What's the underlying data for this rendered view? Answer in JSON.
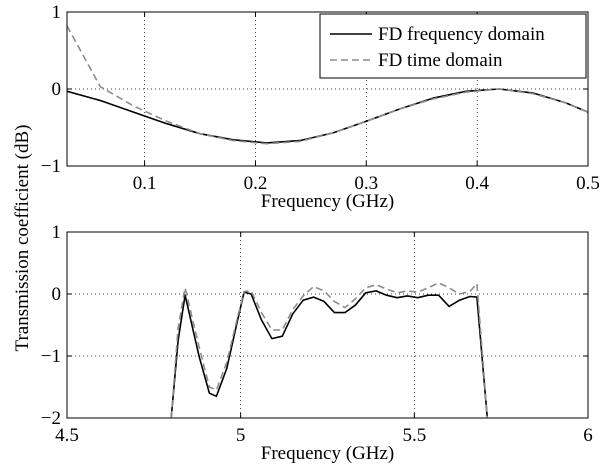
{
  "figure": {
    "ylabel": "Transmission coefficient (dB)"
  },
  "chart_data": [
    {
      "type": "line",
      "xlabel": "Frequency (GHz)",
      "ylabel": "",
      "xlim": [
        0.03,
        0.5
      ],
      "ylim": [
        -1,
        1
      ],
      "xticks": [
        0.1,
        0.2,
        0.3,
        0.4,
        0.5
      ],
      "xtick_labels": [
        "0.1",
        "0.2",
        "0.3",
        "0.4",
        "0.5"
      ],
      "yticks": [
        -1,
        0,
        1
      ],
      "ytick_labels": [
        "−1",
        "0",
        "1"
      ],
      "grid": true,
      "legend": "top-right",
      "series": [
        {
          "name": "FD frequency domain",
          "color": "#000000",
          "dash": "solid",
          "x": [
            0.03,
            0.06,
            0.09,
            0.12,
            0.15,
            0.18,
            0.21,
            0.24,
            0.27,
            0.3,
            0.33,
            0.36,
            0.39,
            0.42,
            0.45,
            0.48,
            0.5
          ],
          "y": [
            -0.03,
            -0.15,
            -0.3,
            -0.45,
            -0.58,
            -0.66,
            -0.7,
            -0.67,
            -0.57,
            -0.42,
            -0.26,
            -0.12,
            -0.03,
            0.0,
            -0.05,
            -0.18,
            -0.3
          ]
        },
        {
          "name": "FD time domain",
          "color": "#8c8c8c",
          "dash": "dashed",
          "x": [
            0.03,
            0.06,
            0.09,
            0.12,
            0.15,
            0.18,
            0.21,
            0.24,
            0.27,
            0.3,
            0.33,
            0.36,
            0.39,
            0.42,
            0.45,
            0.48,
            0.5
          ],
          "y": [
            0.82,
            0.03,
            -0.22,
            -0.42,
            -0.58,
            -0.67,
            -0.71,
            -0.68,
            -0.57,
            -0.42,
            -0.26,
            -0.13,
            -0.04,
            0.0,
            -0.06,
            -0.18,
            -0.3
          ]
        }
      ]
    },
    {
      "type": "line",
      "xlabel": "Frequency (GHz)",
      "ylabel": "",
      "xlim": [
        4.5,
        6
      ],
      "ylim": [
        -2,
        1
      ],
      "xticks": [
        4.5,
        5,
        5.5,
        6
      ],
      "xtick_labels": [
        "4.5",
        "5",
        "5.5",
        "6"
      ],
      "yticks": [
        -2,
        -1,
        0,
        1
      ],
      "ytick_labels": [
        "−2",
        "−1",
        "0",
        "1"
      ],
      "grid": true,
      "legend": "none",
      "series": [
        {
          "name": "FD frequency domain",
          "color": "#000000",
          "dash": "solid",
          "x": [
            4.8,
            4.82,
            4.84,
            4.88,
            4.91,
            4.93,
            4.96,
            4.99,
            5.01,
            5.03,
            5.06,
            5.09,
            5.12,
            5.15,
            5.18,
            5.21,
            5.24,
            5.27,
            5.3,
            5.33,
            5.36,
            5.39,
            5.42,
            5.45,
            5.48,
            5.51,
            5.54,
            5.57,
            5.6,
            5.63,
            5.66,
            5.68,
            5.71
          ],
          "y": [
            -2.0,
            -0.75,
            -0.02,
            -1.0,
            -1.6,
            -1.65,
            -1.2,
            -0.45,
            0.03,
            0.0,
            -0.42,
            -0.72,
            -0.68,
            -0.32,
            -0.1,
            -0.05,
            -0.12,
            -0.3,
            -0.3,
            -0.18,
            0.02,
            0.05,
            -0.02,
            -0.06,
            -0.03,
            -0.06,
            -0.02,
            -0.02,
            -0.2,
            -0.1,
            -0.04,
            -0.05,
            -2.0
          ]
        },
        {
          "name": "FD time domain",
          "color": "#8c8c8c",
          "dash": "dashed",
          "x": [
            4.8,
            4.82,
            4.84,
            4.88,
            4.91,
            4.93,
            4.96,
            4.99,
            5.01,
            5.03,
            5.06,
            5.09,
            5.12,
            5.15,
            5.18,
            5.21,
            5.24,
            5.27,
            5.3,
            5.33,
            5.36,
            5.39,
            5.42,
            5.45,
            5.48,
            5.51,
            5.54,
            5.57,
            5.6,
            5.63,
            5.66,
            5.68,
            5.71
          ],
          "y": [
            -2.0,
            -0.55,
            0.1,
            -0.85,
            -1.5,
            -1.55,
            -1.1,
            -0.4,
            0.04,
            0.05,
            -0.3,
            -0.58,
            -0.58,
            -0.25,
            -0.03,
            0.12,
            0.05,
            -0.12,
            -0.22,
            -0.08,
            0.1,
            0.15,
            0.08,
            0.02,
            0.05,
            0.03,
            0.1,
            0.18,
            0.1,
            0.0,
            0.04,
            0.17,
            -2.0
          ]
        }
      ]
    }
  ]
}
